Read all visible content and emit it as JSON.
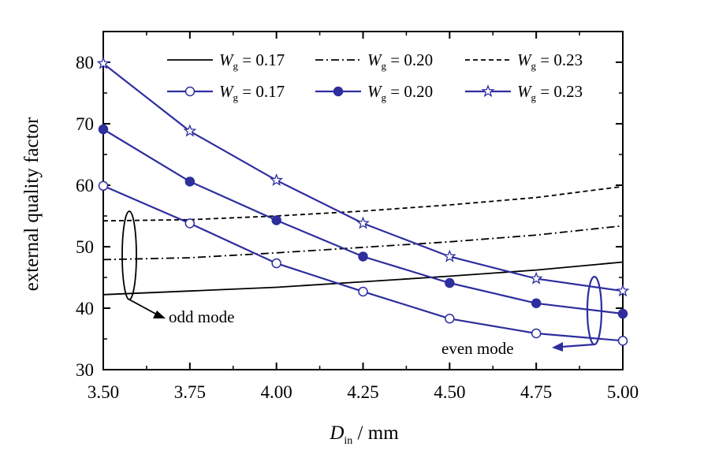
{
  "chart_data": {
    "type": "line",
    "xlabel": {
      "main": "D",
      "sub": "in",
      "unit": "/ mm"
    },
    "ylabel": "external quality factor",
    "xlim": [
      3.5,
      5.0
    ],
    "ylim": [
      30,
      85
    ],
    "x_ticks": [
      "3.50",
      "3.75",
      "4.00",
      "4.25",
      "4.50",
      "4.75",
      "5.00"
    ],
    "y_ticks": [
      "30",
      "40",
      "50",
      "60",
      "70",
      "80"
    ],
    "x_tick_values": [
      3.5,
      3.75,
      4.0,
      4.25,
      4.5,
      4.75,
      5.0
    ],
    "y_tick_values": [
      30,
      40,
      50,
      60,
      70,
      80
    ],
    "grid": false,
    "legend_position": "top-right",
    "series": [
      {
        "name": "Wg = 0.17",
        "name_main": "W",
        "name_sub": "g",
        "name_value": "= 0.17",
        "group": "odd mode",
        "style": "solid",
        "marker": "none",
        "color": "#000000",
        "x": [
          3.5,
          3.75,
          4.0,
          4.25,
          4.5,
          4.75,
          5.0
        ],
        "y": [
          42.2,
          42.8,
          43.4,
          44.3,
          45.2,
          46.2,
          47.5
        ]
      },
      {
        "name": "Wg = 0.20",
        "name_main": "W",
        "name_sub": "g",
        "name_value": "= 0.20",
        "group": "odd mode",
        "style": "dashdot",
        "marker": "none",
        "color": "#000000",
        "x": [
          3.5,
          3.75,
          4.0,
          4.25,
          4.5,
          4.75,
          5.0
        ],
        "y": [
          47.9,
          48.2,
          49.0,
          49.9,
          50.8,
          51.9,
          53.4
        ]
      },
      {
        "name": "Wg = 0.23",
        "name_main": "W",
        "name_sub": "g",
        "name_value": "= 0.23",
        "group": "odd mode",
        "style": "dashed",
        "marker": "none",
        "color": "#000000",
        "x": [
          3.5,
          3.75,
          4.0,
          4.25,
          4.5,
          4.75,
          5.0
        ],
        "y": [
          54.2,
          54.4,
          55.0,
          55.8,
          56.8,
          58.0,
          59.8
        ]
      },
      {
        "name": "Wg = 0.17",
        "name_main": "W",
        "name_sub": "g",
        "name_value": "= 0.17",
        "group": "even mode",
        "style": "solid",
        "marker": "open-circle",
        "color": "#2e2e9e",
        "x": [
          3.5,
          3.75,
          4.0,
          4.25,
          4.5,
          4.75,
          5.0
        ],
        "y": [
          59.9,
          53.8,
          47.3,
          42.7,
          38.3,
          35.9,
          34.7
        ]
      },
      {
        "name": "Wg = 0.20",
        "name_main": "W",
        "name_sub": "g",
        "name_value": "= 0.20",
        "group": "even mode",
        "style": "solid",
        "marker": "filled-circle",
        "color": "#2e2e9e",
        "x": [
          3.5,
          3.75,
          4.0,
          4.25,
          4.5,
          4.75,
          5.0
        ],
        "y": [
          69.1,
          60.6,
          54.3,
          48.4,
          44.1,
          40.8,
          39.1
        ]
      },
      {
        "name": "Wg = 0.23",
        "name_main": "W",
        "name_sub": "g",
        "name_value": "= 0.23",
        "group": "even mode",
        "style": "solid",
        "marker": "open-star",
        "color": "#2e2e9e",
        "x": [
          3.5,
          3.75,
          4.0,
          4.25,
          4.5,
          4.75,
          5.0
        ],
        "y": [
          79.8,
          68.8,
          60.8,
          53.8,
          48.4,
          44.8,
          42.8
        ]
      }
    ],
    "annotations": [
      {
        "text": "odd mode",
        "color": "#000000"
      },
      {
        "text": "even mode",
        "color": "#2e2e9e"
      }
    ]
  }
}
